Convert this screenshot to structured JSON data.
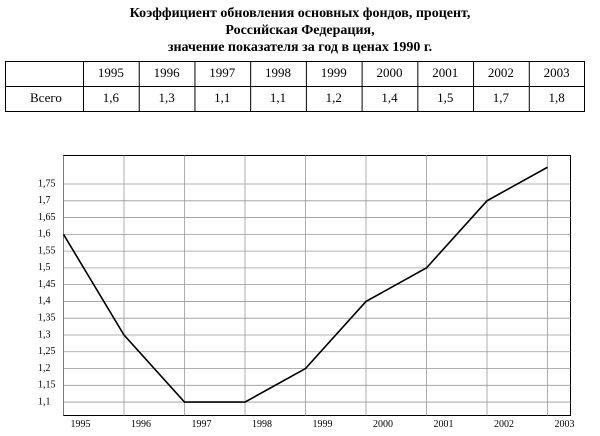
{
  "title": [
    "Коэффициент обновления основных фондов, процент,",
    "Российская Федерация,",
    "значение показателя за год в ценах 1990 г."
  ],
  "table": {
    "header": [
      "1995",
      "1996",
      "1997",
      "1998",
      "1999",
      "2000",
      "2001",
      "2002",
      "2003"
    ],
    "rows": [
      {
        "label": "Всего",
        "cells": [
          "1,6",
          "1,3",
          "1,1",
          "1,1",
          "1,2",
          "1,4",
          "1,5",
          "1,7",
          "1,8"
        ]
      }
    ]
  },
  "chart_data": {
    "type": "line",
    "categories": [
      "1995",
      "1996",
      "1997",
      "1998",
      "1999",
      "2000",
      "2001",
      "2002",
      "2003"
    ],
    "series": [
      {
        "name": "Всего",
        "color": "#000000",
        "values": [
          1.6,
          1.3,
          1.1,
          1.1,
          1.2,
          1.4,
          1.5,
          1.7,
          1.8
        ]
      }
    ],
    "ylim": [
      1.06,
      1.835
    ],
    "yticks": [
      {
        "value": 1.1,
        "label": "1,1"
      },
      {
        "value": 1.15,
        "label": "1,15"
      },
      {
        "value": 1.2,
        "label": "1,2"
      },
      {
        "value": 1.25,
        "label": "1,25"
      },
      {
        "value": 1.3,
        "label": "1,3"
      },
      {
        "value": 1.35,
        "label": "1,35"
      },
      {
        "value": 1.4,
        "label": "1,4"
      },
      {
        "value": 1.45,
        "label": "1,45"
      },
      {
        "value": 1.5,
        "label": "1,5"
      },
      {
        "value": 1.55,
        "label": "1,55"
      },
      {
        "value": 1.6,
        "label": "1,6"
      },
      {
        "value": 1.65,
        "label": "1,65"
      },
      {
        "value": 1.7,
        "label": "1,7"
      },
      {
        "value": 1.75,
        "label": "1,75"
      }
    ],
    "grid": true
  }
}
